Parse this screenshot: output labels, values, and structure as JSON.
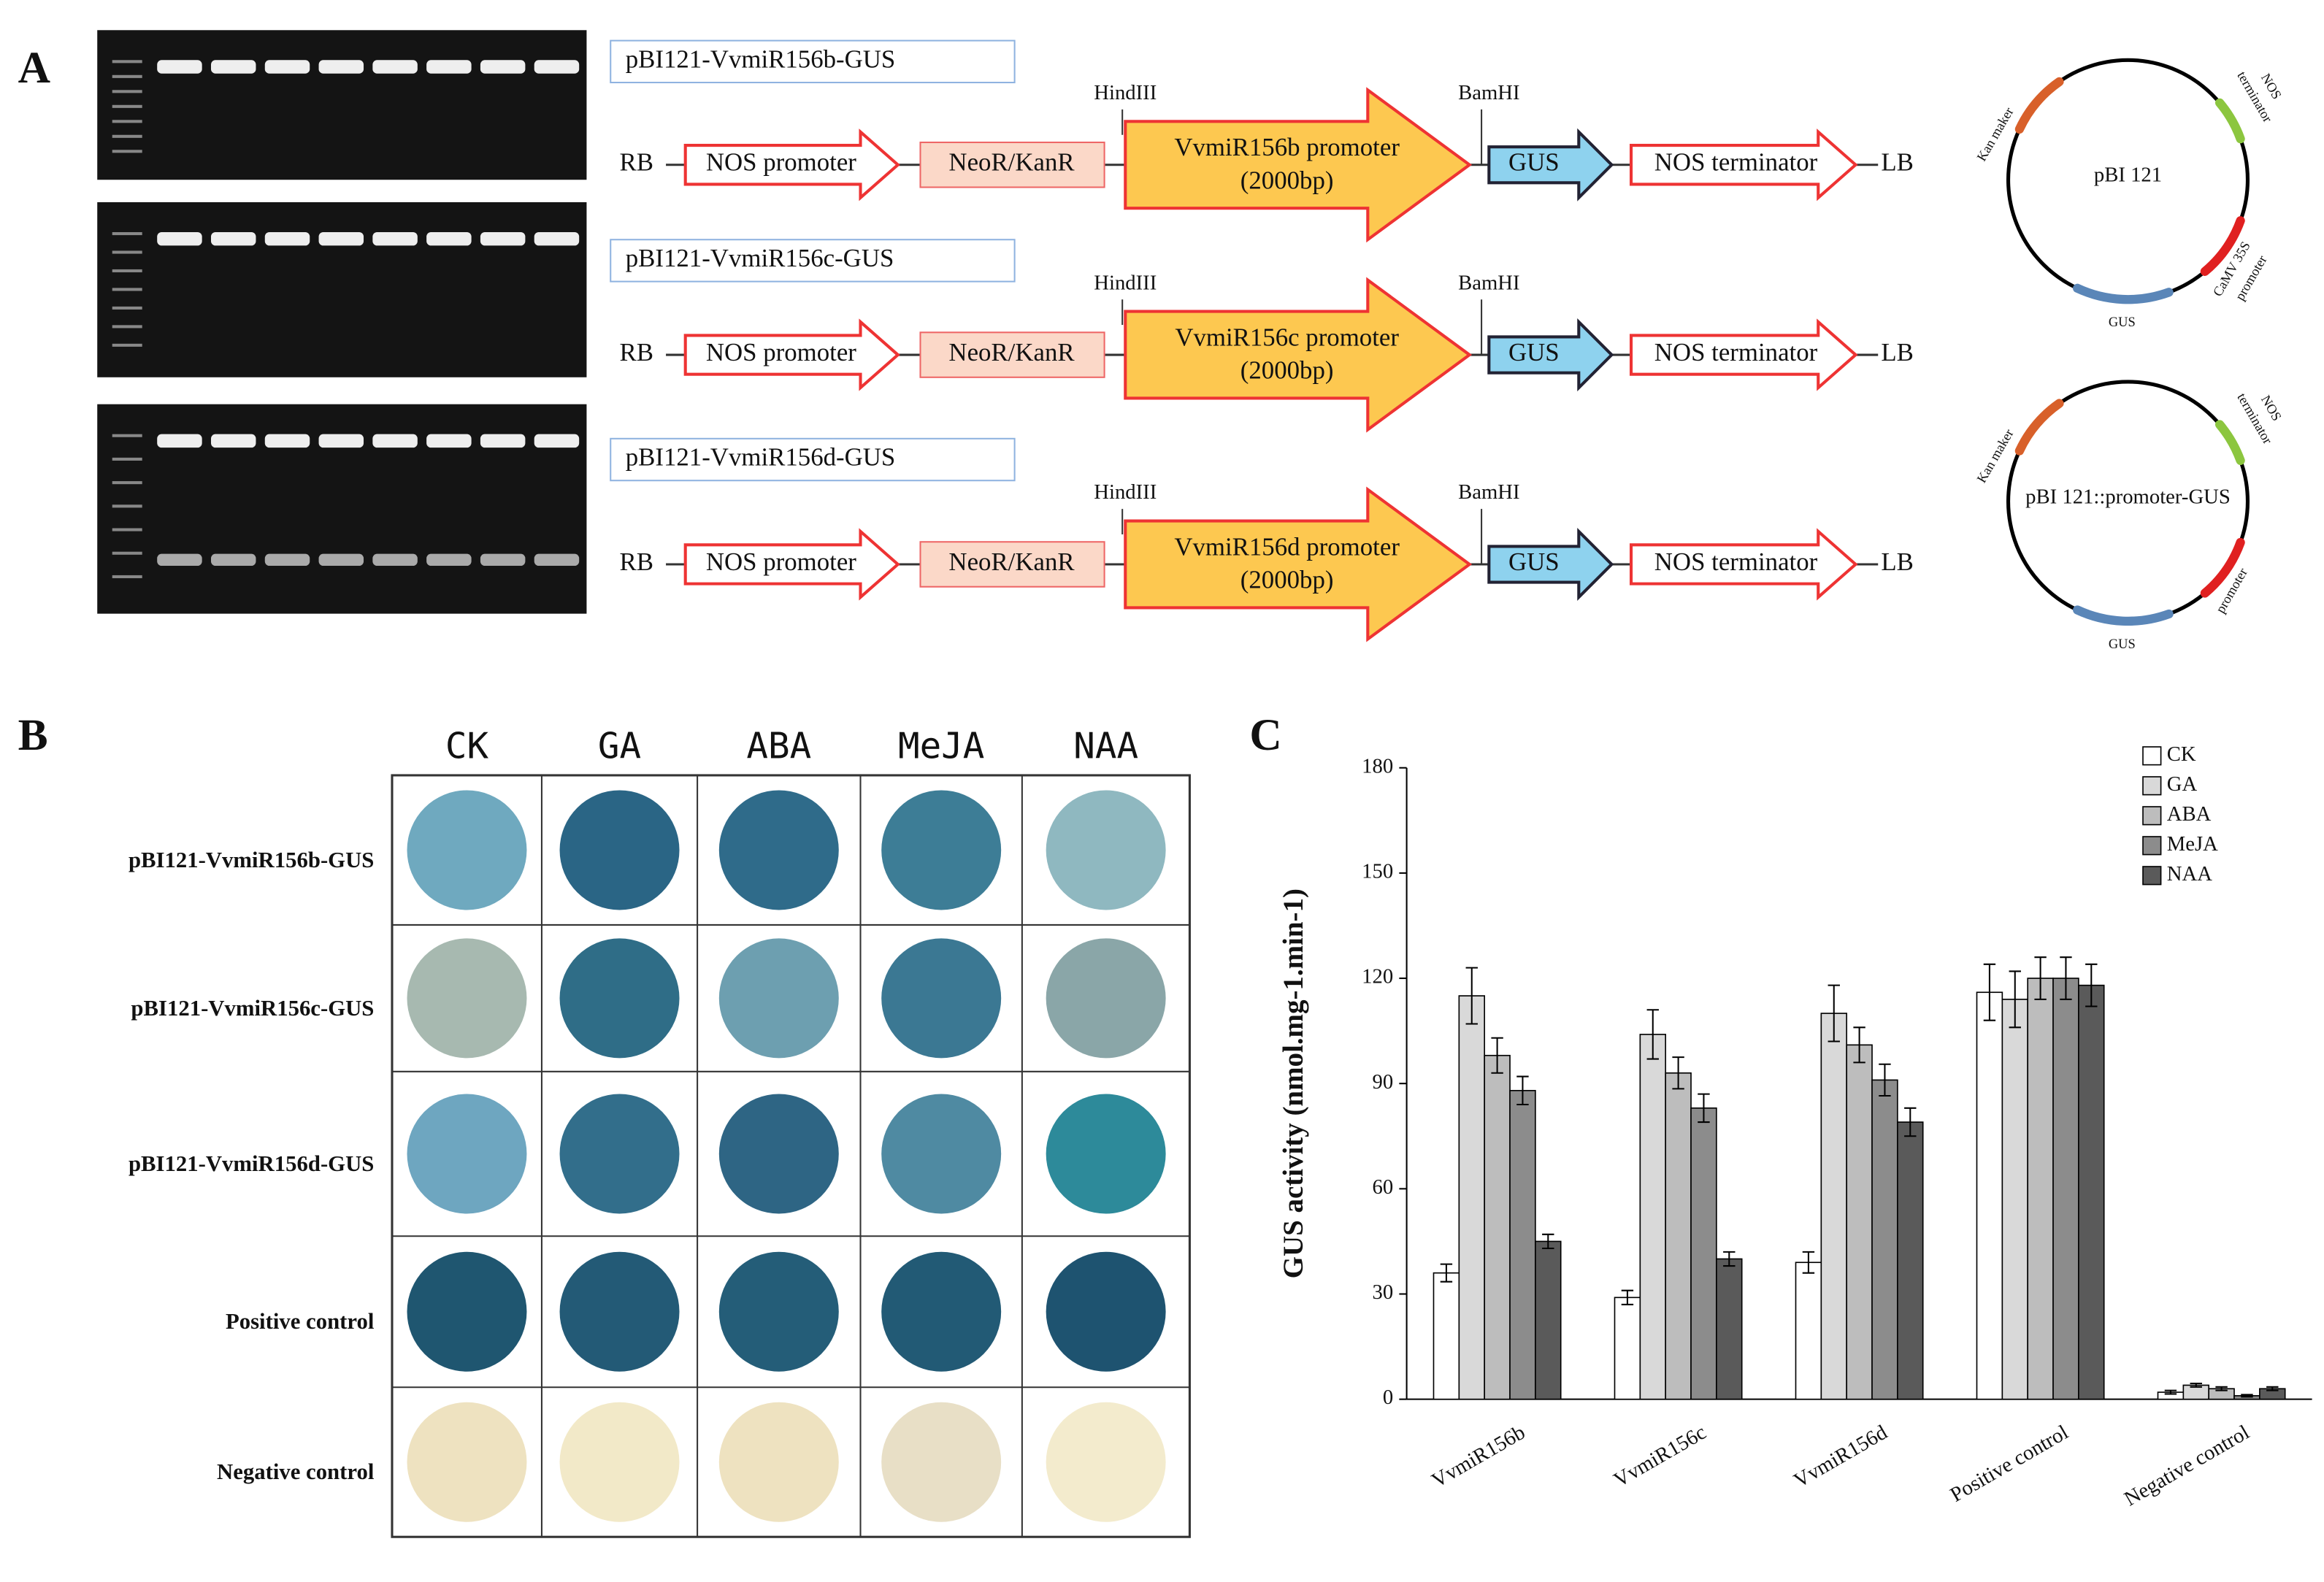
{
  "panel_a": {
    "label": "A",
    "constructs": [
      {
        "title": "pBI121-VvmiR156b-GUS",
        "rb": "RB",
        "nos_promoter": "NOS promoter",
        "neor": "NeoR/KanR",
        "hind": "HindIII",
        "promoter": "VvmiR156b promoter",
        "size": "(2000bp)",
        "bam": "BamHI",
        "gus": "GUS",
        "terminator": "NOS terminator",
        "lb": "LB"
      },
      {
        "title": "pBI121-VvmiR156c-GUS",
        "rb": "RB",
        "nos_promoter": "NOS promoter",
        "neor": "NeoR/KanR",
        "hind": "HindIII",
        "promoter": "VvmiR156c promoter",
        "size": "(2000bp)",
        "bam": "BamHI",
        "gus": "GUS",
        "terminator": "NOS terminator",
        "lb": "LB"
      },
      {
        "title": "pBI121-VvmiR156d-GUS",
        "rb": "RB",
        "nos_promoter": "NOS promoter",
        "neor": "NeoR/KanR",
        "hind": "HindIII",
        "promoter": "VvmiR156d promoter",
        "size": "(2000bp)",
        "bam": "BamHI",
        "gus": "GUS",
        "terminator": "NOS terminator",
        "lb": "LB"
      }
    ],
    "plasmids": [
      {
        "name": "pBI 121",
        "kan": "Kan maker",
        "nos": "NOS",
        "nos2": "terminator",
        "prom": "CaMV 35S",
        "prom2": "promoter",
        "gus": "GUS"
      },
      {
        "name": "pBI 121::promoter-GUS",
        "kan": "Kan maker",
        "nos": "NOS",
        "nos2": "terminator",
        "prom": "promoter",
        "gus": "GUS"
      }
    ]
  },
  "panel_b": {
    "label": "B",
    "columns": [
      "CK",
      "GA",
      "ABA",
      "MeJA",
      "NAA"
    ],
    "rows": [
      "pBI121-VvmiR156b-GUS",
      "pBI121-VvmiR156c-GUS",
      "pBI121-VvmiR156d-GUS",
      "Positive control",
      "Negative control"
    ]
  },
  "chart_data": {
    "type": "bar",
    "label": "C",
    "y_label": "GUS activity (nmol.mg-1.min-1)",
    "categories": [
      "VvmiR156b",
      "VvmiR156c",
      "VvmiR156d",
      "Positive control",
      "Negative control"
    ],
    "series": [
      {
        "name": "CK",
        "color": "#ffffff",
        "values": [
          36,
          29,
          39,
          116,
          2
        ],
        "errors": [
          2.5,
          2,
          3,
          8,
          0.5
        ]
      },
      {
        "name": "GA",
        "color": "#d9d9d9",
        "values": [
          115,
          104,
          110,
          114,
          4
        ],
        "errors": [
          8,
          7,
          8,
          8,
          0.5
        ]
      },
      {
        "name": "ABA",
        "color": "#bdbdbd",
        "values": [
          98,
          93,
          101,
          120,
          3
        ],
        "errors": [
          5,
          4.5,
          5,
          6,
          0.5
        ]
      },
      {
        "name": "MeJA",
        "color": "#8c8c8c",
        "values": [
          88,
          83,
          91,
          120,
          1
        ],
        "errors": [
          4,
          4,
          4.5,
          6,
          0.3
        ]
      },
      {
        "name": "NAA",
        "color": "#5a5a5a",
        "values": [
          45,
          40,
          79,
          118,
          3
        ],
        "errors": [
          2,
          2,
          4,
          6,
          0.5
        ]
      }
    ],
    "ylim": [
      0,
      180
    ],
    "yticks": [
      0,
      30,
      60,
      90,
      120,
      150,
      180
    ]
  }
}
